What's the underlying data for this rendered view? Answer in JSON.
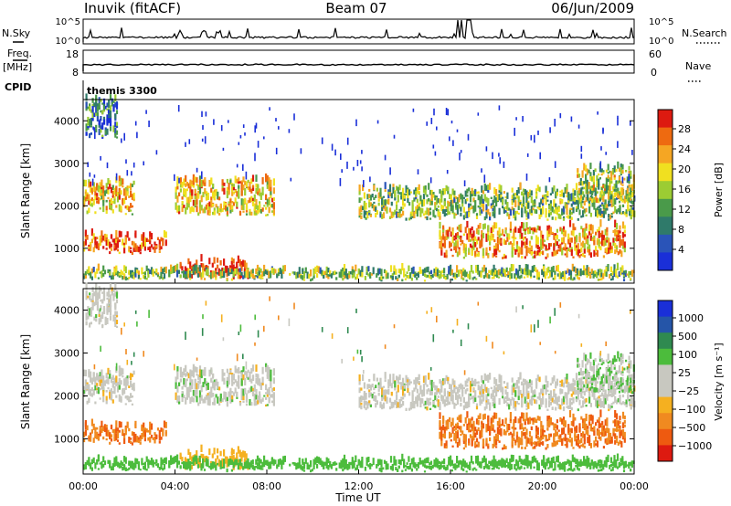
{
  "header": {
    "station": "Inuvik (fitACF)",
    "beam": "Beam 07",
    "date": "06/Jun/2009"
  },
  "strips": {
    "nsky_label": "N.Sky",
    "nsearch_label": "N.Search",
    "nsky_ticks": [
      "10^5",
      "10^0"
    ],
    "nsearch_ticks": [
      "10^5",
      "10^0"
    ],
    "freq_label": "Freq.",
    "freq_unit": "[MHz]",
    "freq_ticks": [
      "18",
      "8"
    ],
    "nave_label": "Nave",
    "nave_ticks": [
      "60",
      "0"
    ],
    "cpid_label": "CPID",
    "cpid_value": "themis 3300"
  },
  "axes": {
    "xlabel": "Time UT",
    "x_ticks": [
      "00:00",
      "04:00",
      "08:00",
      "12:00",
      "16:00",
      "20:00",
      "00:00"
    ],
    "ylabel": "Slant Range [km]",
    "y_ticks": [
      "1000",
      "2000",
      "3000",
      "4000"
    ],
    "ylim": [
      180,
      4500
    ]
  },
  "colorbars": {
    "power_label": "Power [dB]",
    "power_ticks": [
      "28",
      "24",
      "20",
      "16",
      "12",
      "8",
      "4"
    ],
    "velocity_label": "Velocity [m s⁻¹]",
    "velocity_ticks": [
      "1000",
      "500",
      "100",
      "25",
      "−25",
      "−100",
      "−500",
      "−1000"
    ]
  },
  "chart_data": {
    "type": "heatmap",
    "title": "Inuvik (fitACF)  Beam 07  06/Jun/2009",
    "xlabel": "Time UT",
    "ylabel": "Slant Range [km]",
    "x_range_hours": [
      0,
      24
    ],
    "ylim": [
      180,
      4500
    ],
    "power_scale_db": [
      0,
      30
    ],
    "velocity_scale": [
      -1000,
      1000
    ],
    "power_colors": [
      "#1a2fd8",
      "#2a54b8",
      "#2f7a6a",
      "#4a9a4a",
      "#9ccc33",
      "#f0e020",
      "#f5a623",
      "#ee6a10",
      "#dd1a10"
    ],
    "velocity_colors": [
      "#dd1a10",
      "#ee5a10",
      "#f08a20",
      "#f5b020",
      "#c8c8c0",
      "#c8c8c0",
      "#4cbc3c",
      "#2f8a50",
      "#2555a8",
      "#1a2fd8"
    ],
    "echo_regions": [
      {
        "t0": 0.0,
        "t1": 2.2,
        "r0": 1750,
        "r1": 2450,
        "power": 20,
        "velocity": 0
      },
      {
        "t0": 0.0,
        "t1": 3.6,
        "r0": 800,
        "r1": 1200,
        "power": 26,
        "velocity": -450
      },
      {
        "t0": 0.1,
        "t1": 1.5,
        "r0": 3500,
        "r1": 4400,
        "power": 8,
        "velocity": 0
      },
      {
        "t0": 4.0,
        "t1": 8.3,
        "r0": 1700,
        "r1": 2500,
        "power": 20,
        "velocity": 0
      },
      {
        "t0": 4.2,
        "t1": 7.2,
        "r0": 200,
        "r1": 600,
        "power": 30,
        "velocity": -60
      },
      {
        "t0": 0.0,
        "t1": 24.0,
        "r0": 180,
        "r1": 380,
        "power": 14,
        "velocity": 60
      },
      {
        "t0": 12.0,
        "t1": 24.0,
        "r0": 1600,
        "r1": 2300,
        "power": 14,
        "velocity": 0
      },
      {
        "t0": 15.5,
        "t1": 23.6,
        "r0": 700,
        "r1": 1400,
        "power": 22,
        "velocity": -450
      },
      {
        "t0": 21.5,
        "t1": 24.0,
        "r0": 2000,
        "r1": 2800,
        "power": 16,
        "velocity": 20
      }
    ]
  }
}
